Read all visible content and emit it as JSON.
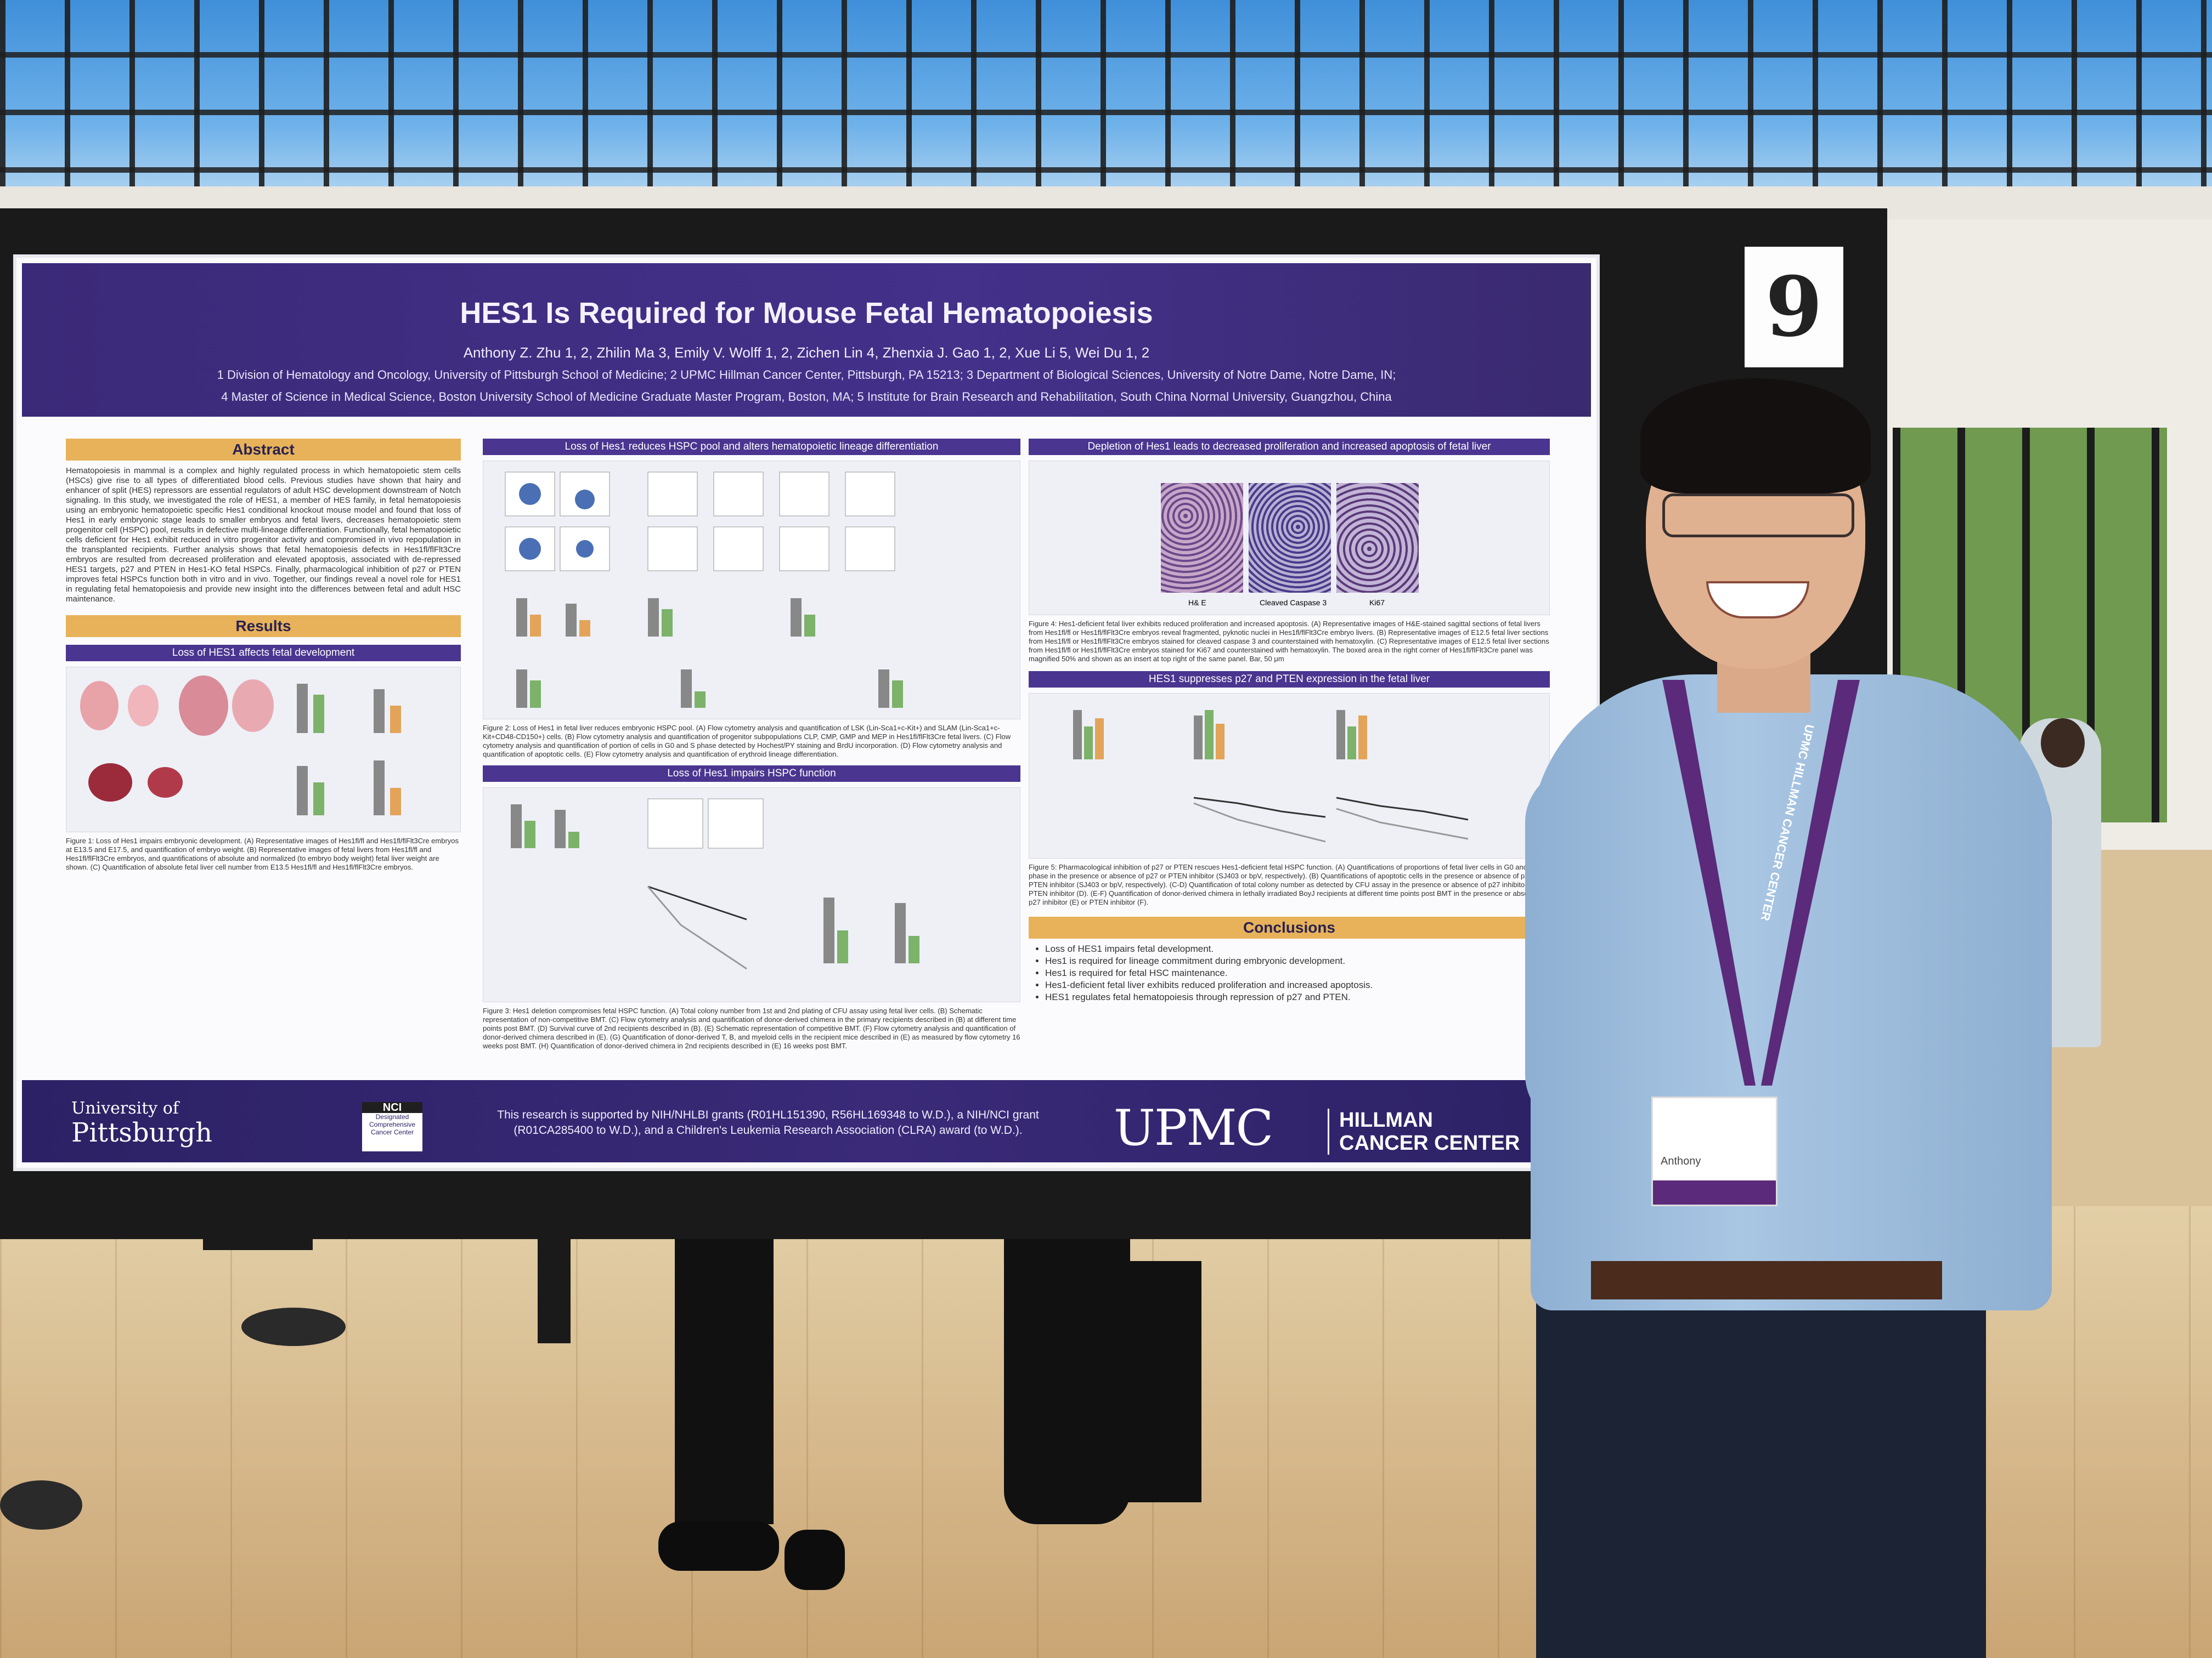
{
  "scene": {
    "description_tag": "poster-presentation",
    "board_number": "9"
  },
  "poster": {
    "title": "HES1 Is Required for Mouse Fetal Hematopoiesis",
    "authors": "Anthony Z. Zhu 1, 2, Zhilin Ma 3, Emily V. Wolff 1, 2, Zichen Lin 4, Zhenxia J. Gao 1, 2, Xue Li 5, Wei Du 1, 2",
    "affiliation_line1": "1 Division of Hematology and Oncology, University of Pittsburgh School of Medicine; 2 UPMC Hillman Cancer Center, Pittsburgh, PA 15213; 3 Department of Biological Sciences, University of Notre Dame, Notre Dame, IN;",
    "affiliation_line2": "4 Master of Science in Medical Science, Boston University School of Medicine Graduate Master Program, Boston, MA; 5 Institute for Brain Research and Rehabilitation, South China Normal University, Guangzhou, China",
    "abstract": {
      "heading": "Abstract",
      "text": "Hematopoiesis in mammal is a complex and highly regulated process in which hematopoietic stem cells (HSCs) give rise to all types of differentiated blood cells. Previous studies have shown that hairy and enhancer of split (HES) repressors are essential regulators of adult HSC development downstream of Notch signaling. In this study, we investigated the role of HES1, a member of HES family, in fetal hematopoiesis using an embryonic hematopoietic specific Hes1 conditional knockout mouse model and found that loss of Hes1 in early embryonic stage leads to smaller embryos and fetal livers, decreases hematopoietic stem progenitor cell (HSPC) pool, results in defective multi-lineage differentiation. Functionally, fetal hematopoietic cells deficient for Hes1 exhibit reduced in vitro progenitor activity and compromised in vivo repopulation in the transplanted recipients. Further analysis shows that fetal hematopoiesis defects in Hes1fl/flFlt3Cre embryos are resulted from decreased proliferation and elevated apoptosis, associated with de-repressed HES1 targets, p27 and PTEN in Hes1-KO fetal HSPCs. Finally, pharmacological inhibition of p27 or PTEN improves fetal HSPCs function both in vitro and in vivo. Together, our findings reveal a novel role for HES1 in regulating fetal hematopoiesis and provide new insight into the differences between fetal and adult HSC maintenance."
    },
    "results": {
      "heading": "Results",
      "fig1_title": "Loss of HES1 affects fetal development",
      "fig1_caption": "Figure 1: Loss of Hes1 impairs embryonic development. (A) Representative images of Hes1fl/fl and Hes1fl/flFlt3Cre embryos at E13.5 and E17.5, and quantification of embryo weight. (B) Representative images of fetal livers from Hes1fl/fl and Hes1fl/flFlt3Cre embryos, and quantifications of absolute and normalized (to embryo body weight) fetal liver weight are shown. (C) Quantification of absolute fetal liver cell number from E13.5 Hes1fl/fl and Hes1fl/flFlt3Cre embryos.",
      "fig2_title": "Loss of Hes1 reduces HSPC pool and alters hematopoietic lineage differentiation",
      "fig2_caption": "Figure 2: Loss of Hes1 in fetal liver reduces embryonic HSPC pool. (A) Flow cytometry analysis and quantification of LSK (Lin-Sca1+c-Kit+) and SLAM (Lin-Sca1+c-Kit+CD48-CD150+) cells. (B) Flow cytometry analysis and quantification of progenitor subpopulations CLP, CMP, GMP and MEP in Hes1fl/flFlt3Cre fetal livers. (C) Flow cytometry analysis and quantification of portion of cells in G0 and S phase detected by Hochest/PY staining and BrdU incorporation. (D) Flow cytometry analysis and quantification of apoptotic cells. (E) Flow cytometry analysis and quantification of erythroid lineage differentiation.",
      "fig3_title": "Loss of Hes1 impairs HSPC function",
      "fig3_caption": "Figure 3: Hes1 deletion compromises fetal HSPC function. (A) Total colony number from 1st and 2nd plating of CFU assay using fetal liver cells. (B) Schematic representation of non-competitive BMT. (C) Flow cytometry analysis and quantification of donor-derived chimera in the primary recipients described in (B) at different time points post BMT. (D) Survival curve of 2nd recipients described in (B). (E) Schematic representation of competitive BMT. (F) Flow cytometry analysis and quantification of donor-derived chimera described in (E). (G) Quantification of donor-derived T, B, and myeloid cells in the recipient mice described in (E) as measured by flow cytometry 16 weeks post BMT. (H) Quantification of donor-derived chimera in 2nd recipients described in (E) 16 weeks post BMT.",
      "fig4_title": "Depletion of Hes1 leads to decreased proliferation and increased apoptosis of fetal liver",
      "fig4_labels": [
        "H& E",
        "Cleaved Caspase 3",
        "Ki67"
      ],
      "fig4_caption": "Figure 4: Hes1-deficient fetal liver exhibits reduced proliferation and increased apoptosis. (A) Representative images of H&E-stained sagittal sections of fetal livers from Hes1fl/fl or Hes1fl/flFlt3Cre embryos reveal fragmented, pyknotic nuclei in Hes1fl/flFlt3Cre embryo livers. (B) Representative images of E12.5 fetal liver sections from Hes1fl/fl or Hes1fl/flFlt3Cre embryos stained for cleaved caspase 3 and counterstained with hematoxylin. (C) Representative images of E12.5 fetal liver sections from Hes1fl/fl or Hes1fl/flFlt3Cre embryos stained for Ki67 and counterstained with hematoxylin. The boxed area in the right corner of Hes1fl/flFlt3Cre panel was magnified 50% and shown as an insert at top right of the same panel. Bar, 50 μm",
      "fig5_title": "HES1 suppresses p27 and PTEN expression in the fetal liver",
      "fig5_caption": "Figure 5: Pharmacological inhibition of p27 or PTEN rescues Hes1-deficient fetal HSPC function. (A) Quantifications of proportions of fetal liver cells in G0 and S phase in the presence or absence of p27 or PTEN inhibitor (SJ403 or bpV, respectively). (B) Quantifications of apoptotic cells in the presence or absence of p27 or PTEN inhibitor (SJ403 or bpV, respectively). (C-D) Quantification of total colony number as detected by CFU assay in the presence or absence of p27 inhibitor (C) or PTEN inhibitor (D). (E-F) Quantification of donor-derived chimera in lethally irradiated BoyJ recipients at different time points post BMT in the presence or absence of p27 inhibitor (E) or PTEN inhibitor (F)."
    },
    "conclusions": {
      "heading": "Conclusions",
      "items": [
        "Loss of HES1 impairs fetal development.",
        "Hes1 is required for lineage commitment during embryonic development.",
        "Hes1 is required for fetal HSC maintenance.",
        "Hes1-deficient fetal liver exhibits reduced proliferation and increased apoptosis.",
        "HES1 regulates fetal hematopoiesis through repression of p27 and PTEN."
      ]
    },
    "footer": {
      "university_line1": "University of",
      "university_line2": "Pittsburgh",
      "nci_title": "NCI",
      "nci_sub": "Designated Comprehensive Cancer Center",
      "funding": "This research is supported by NIH/NHLBI grants (R01HL151390, R56HL169348 to W.D.), a NIH/NCI grant (R01CA285400 to W.D.), and a Children's Leukemia Research Association (CLRA) award (to W.D.).",
      "upmc": "UPMC",
      "hillman_line1": "HILLMAN",
      "hillman_line2": "CANCER CENTER"
    }
  },
  "presenter": {
    "badge_name": "Anthony",
    "lanyard_text": "UPMC HILLMAN CANCER CENTER"
  },
  "colors": {
    "poster_purple": "#43318a",
    "poster_gold": "#e7b25a",
    "shirt_blue": "#a9c6e3",
    "lanyard_purple": "#5b2a7a"
  }
}
